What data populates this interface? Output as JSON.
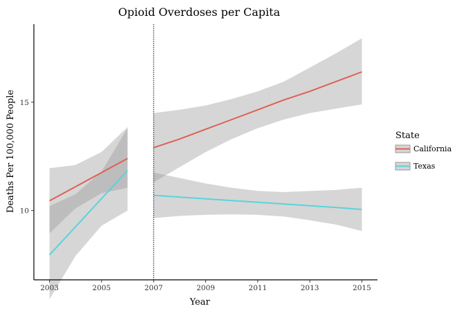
{
  "chart_data": {
    "type": "line",
    "title": "Opioid Overdoses per Capita",
    "xlabel": "Year",
    "ylabel": "Deaths Per 100,000 People",
    "xlim": [
      2002.4,
      2015.6
    ],
    "ylim": [
      6.8,
      18.6
    ],
    "x_ticks": [
      2003,
      2005,
      2007,
      2009,
      2011,
      2013,
      2015
    ],
    "y_ticks": [
      10,
      15
    ],
    "vline": 2007,
    "legend": {
      "title": "State",
      "position": "right"
    },
    "ribbon_color": "#999999",
    "series": [
      {
        "name": "California",
        "color": "#dd6153",
        "segments": [
          {
            "x": [
              2003,
              2004,
              2005,
              2006
            ],
            "y": [
              10.45,
              11.1,
              11.75,
              12.4
            ],
            "lower": [
              8.95,
              10.1,
              10.8,
              11.05
            ],
            "upper": [
              11.95,
              12.1,
              12.7,
              13.85
            ]
          },
          {
            "x": [
              2007,
              2008,
              2009,
              2010,
              2011,
              2012,
              2013,
              2014,
              2015
            ],
            "y": [
              12.9,
              13.3,
              13.75,
              14.2,
              14.65,
              15.1,
              15.5,
              15.95,
              16.4
            ],
            "lower": [
              11.3,
              12.0,
              12.7,
              13.3,
              13.8,
              14.2,
              14.5,
              14.7,
              14.9
            ],
            "upper": [
              14.5,
              14.65,
              14.85,
              15.15,
              15.5,
              15.95,
              16.6,
              17.25,
              17.95
            ]
          }
        ]
      },
      {
        "name": "Texas",
        "color": "#5ad3da",
        "segments": [
          {
            "x": [
              2003,
              2004,
              2005,
              2006
            ],
            "y": [
              7.95,
              9.25,
              10.55,
              11.85
            ],
            "lower": [
              5.9,
              7.9,
              9.3,
              10.0
            ],
            "upper": [
              10.2,
              10.75,
              11.8,
              13.8
            ]
          },
          {
            "x": [
              2007,
              2008,
              2009,
              2010,
              2011,
              2012,
              2013,
              2014,
              2015
            ],
            "y": [
              10.7,
              10.62,
              10.54,
              10.46,
              10.38,
              10.3,
              10.22,
              10.14,
              10.05
            ],
            "lower": [
              9.65,
              9.75,
              9.8,
              9.82,
              9.8,
              9.72,
              9.55,
              9.35,
              9.05
            ],
            "upper": [
              11.75,
              11.5,
              11.25,
              11.05,
              10.9,
              10.85,
              10.9,
              10.95,
              11.05
            ]
          }
        ]
      }
    ]
  }
}
